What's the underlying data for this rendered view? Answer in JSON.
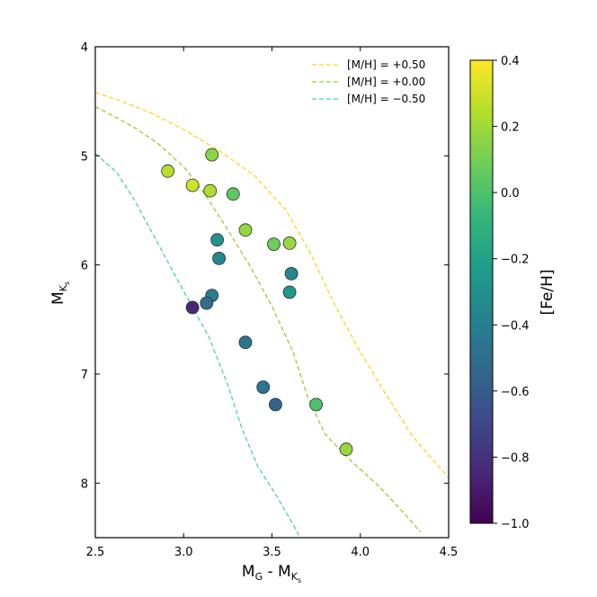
{
  "chart_data": {
    "type": "scatter",
    "xlabel": {
      "main": "M",
      "sub1": "G",
      "sep": " - ",
      "main2": "M",
      "sub2": "K",
      "subsub2": "s"
    },
    "ylabel": {
      "main": "M",
      "sub": "K",
      "subsub": "s"
    },
    "xlim": [
      2.5,
      4.5
    ],
    "ylim": [
      8.5,
      4.0
    ],
    "y_inverted": true,
    "xticks": [
      "2.5",
      "3.0",
      "3.5",
      "4.0",
      "4.5"
    ],
    "yticks": [
      "4",
      "5",
      "6",
      "7",
      "8"
    ],
    "legend_position": "top-right",
    "colorbar": {
      "label": "[Fe/H]",
      "range": [
        -1.0,
        0.4
      ],
      "ticks": [
        "0.4",
        "0.2",
        "0.0",
        "−0.2",
        "−0.4",
        "−0.6",
        "−0.8",
        "−1.0"
      ],
      "tick_values": [
        0.4,
        0.2,
        0.0,
        -0.2,
        -0.4,
        -0.6,
        -0.8,
        -1.0
      ],
      "colormap": "viridis",
      "stops": [
        "#440154",
        "#482878",
        "#3e4989",
        "#31688e",
        "#26828e",
        "#1f9e89",
        "#35b779",
        "#6ece58",
        "#b5de2b",
        "#fde725"
      ]
    },
    "isochrones": [
      {
        "name": "[M/H] = +0.50",
        "color": "#ffd21f",
        "x": [
          2.5,
          2.65,
          2.82,
          3.0,
          3.2,
          3.4,
          3.58,
          3.72,
          3.85,
          4.0,
          4.15,
          4.3,
          4.5
        ],
        "y": [
          4.42,
          4.5,
          4.61,
          4.76,
          4.95,
          5.18,
          5.5,
          5.9,
          6.35,
          6.8,
          7.2,
          7.58,
          7.95
        ]
      },
      {
        "name": "[M/H] = +0.00",
        "color": "#9acd32",
        "x": [
          2.5,
          2.62,
          2.72,
          2.85,
          3.0,
          3.12,
          3.25,
          3.38,
          3.5,
          3.62,
          3.7,
          3.8,
          3.95,
          4.1,
          4.25,
          4.34
        ],
        "y": [
          4.55,
          4.65,
          4.74,
          4.88,
          5.1,
          5.35,
          5.68,
          6.02,
          6.38,
          6.8,
          7.2,
          7.55,
          7.8,
          8.02,
          8.28,
          8.45
        ]
      },
      {
        "name": "[M/H] = −0.50",
        "color": "#48d1b0",
        "x": [
          2.5,
          2.62,
          2.72,
          2.82,
          2.92,
          3.02,
          3.14,
          3.25,
          3.33,
          3.42,
          3.52,
          3.62,
          3.66
        ],
        "y": [
          4.98,
          5.15,
          5.4,
          5.7,
          6.0,
          6.3,
          6.65,
          7.1,
          7.5,
          7.85,
          8.1,
          8.38,
          8.5
        ]
      }
    ],
    "points": [
      {
        "x": 2.91,
        "y": 5.14,
        "feh": 0.25
      },
      {
        "x": 3.05,
        "y": 5.27,
        "feh": 0.3
      },
      {
        "x": 3.16,
        "y": 4.99,
        "feh": 0.15
      },
      {
        "x": 3.15,
        "y": 5.32,
        "feh": 0.23
      },
      {
        "x": 3.28,
        "y": 5.35,
        "feh": 0.05
      },
      {
        "x": 3.35,
        "y": 5.68,
        "feh": 0.17
      },
      {
        "x": 3.51,
        "y": 5.81,
        "feh": 0.08
      },
      {
        "x": 3.6,
        "y": 5.8,
        "feh": 0.18
      },
      {
        "x": 3.19,
        "y": 5.77,
        "feh": -0.3
      },
      {
        "x": 3.2,
        "y": 5.94,
        "feh": -0.35
      },
      {
        "x": 3.61,
        "y": 6.08,
        "feh": -0.35
      },
      {
        "x": 3.6,
        "y": 6.25,
        "feh": -0.25
      },
      {
        "x": 3.16,
        "y": 6.28,
        "feh": -0.4
      },
      {
        "x": 3.13,
        "y": 6.35,
        "feh": -0.5
      },
      {
        "x": 3.05,
        "y": 6.39,
        "feh": -0.85
      },
      {
        "x": 3.35,
        "y": 6.71,
        "feh": -0.45
      },
      {
        "x": 3.45,
        "y": 7.12,
        "feh": -0.45
      },
      {
        "x": 3.52,
        "y": 7.28,
        "feh": -0.55
      },
      {
        "x": 3.75,
        "y": 7.28,
        "feh": 0.0
      },
      {
        "x": 3.92,
        "y": 7.69,
        "feh": 0.18
      }
    ]
  }
}
